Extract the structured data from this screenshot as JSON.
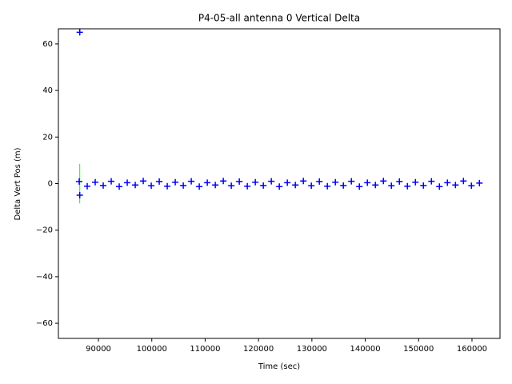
{
  "chart_data": {
    "type": "scatter",
    "title": "P4-05-all antenna 0 Vertical Delta",
    "x_label": "Time (sec)",
    "y_label": "Delta Vert Pos (m)",
    "xlim": [
      82500,
      165250
    ],
    "ylim": [
      -66.5,
      66.5
    ],
    "xticks": [
      90000,
      100000,
      110000,
      120000,
      130000,
      140000,
      150000,
      160000
    ],
    "yticks": [
      {
        "value": -60,
        "label": "−60"
      },
      {
        "value": -40,
        "label": "−40"
      },
      {
        "value": -20,
        "label": "−20"
      },
      0,
      20,
      40,
      60
    ],
    "series": [
      {
        "color": "#0000ff",
        "marker": "+",
        "x": [
          86400,
          87900,
          89400,
          90900,
          92400,
          93900,
          95400,
          96900,
          98400,
          99900,
          101400,
          102900,
          104400,
          105900,
          107400,
          108900,
          110400,
          111900,
          113400,
          114900,
          116400,
          117900,
          119400,
          120900,
          122400,
          123900,
          125400,
          126900,
          128400,
          129900,
          131400,
          132900,
          134400,
          135900,
          137400,
          138900,
          140400,
          141900,
          143400,
          144900,
          146400,
          147900,
          149400,
          150900,
          152400,
          153900,
          155400,
          156900,
          158400,
          159900,
          161400,
          86500,
          86500
        ],
        "y": [
          0.9,
          -1.1,
          0.6,
          -0.8,
          1.0,
          -1.3,
          0.4,
          -0.6,
          1.1,
          -0.9,
          0.9,
          -1.1,
          0.6,
          -0.8,
          1.0,
          -1.3,
          0.4,
          -0.6,
          1.1,
          -0.9,
          0.9,
          -1.1,
          0.6,
          -0.8,
          1.0,
          -1.3,
          0.4,
          -0.6,
          1.1,
          -0.9,
          0.9,
          -1.1,
          0.6,
          -0.8,
          1.0,
          -1.3,
          0.4,
          -0.6,
          1.1,
          -0.9,
          0.9,
          -1.1,
          0.6,
          -0.8,
          1.0,
          -1.3,
          0.4,
          -0.6,
          1.1,
          -0.9,
          0.2,
          65,
          -5
        ]
      }
    ],
    "error_bars": {
      "color": "#00ff00",
      "x": [
        86500
      ],
      "y": [
        0
      ],
      "error": [
        8.5
      ]
    }
  }
}
